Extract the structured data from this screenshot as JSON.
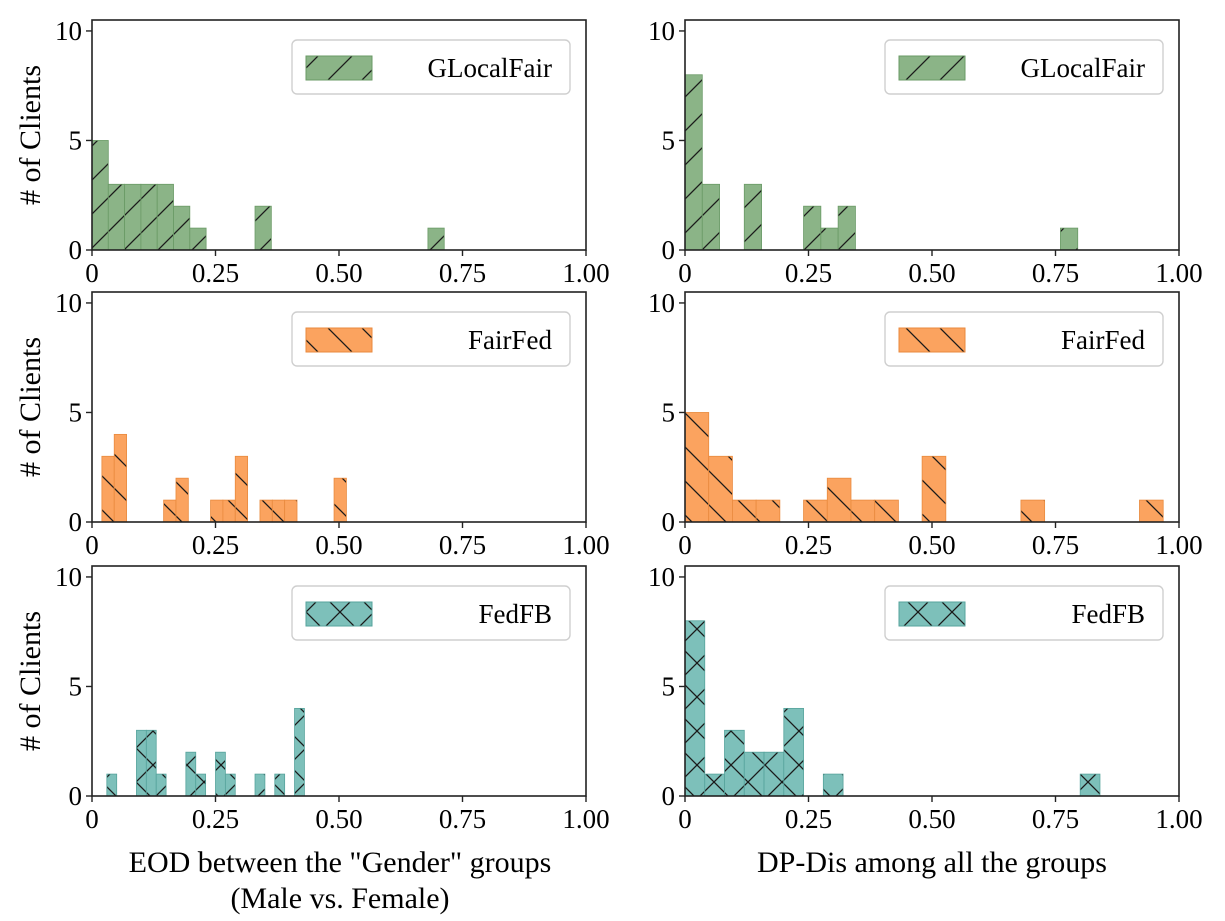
{
  "figure": {
    "left_xlabel_line1": "EOD between the \"Gender\" groups",
    "left_xlabel_line2": "(Male vs. Female)",
    "right_xlabel": "DP-Dis among all the groups",
    "ylabel": "# of Clients"
  },
  "chart_data": [
    {
      "type": "bar",
      "title": "",
      "legend": "GLocalFair",
      "legend_position": "top-right",
      "color": "#8bb487",
      "edge_color": "#6a9a66",
      "hatch": "/",
      "xlabel": "",
      "ylabel": "# of Clients",
      "xlim": [
        0,
        1.0
      ],
      "ylim": [
        0,
        10.5
      ],
      "xticks": [
        "0",
        "0.25",
        "0.50",
        "0.75",
        "1.00"
      ],
      "yticks": [
        "0",
        "5",
        "10"
      ],
      "bin_width": 0.033,
      "x": [
        0.0,
        0.033,
        0.066,
        0.099,
        0.132,
        0.165,
        0.198,
        0.33,
        0.68
      ],
      "values": [
        5,
        3,
        3,
        3,
        3,
        2,
        1,
        2,
        1
      ]
    },
    {
      "type": "bar",
      "title": "",
      "legend": "GLocalFair",
      "legend_position": "top-right",
      "color": "#8bb487",
      "edge_color": "#6a9a66",
      "hatch": "/",
      "xlabel": "",
      "ylabel": "",
      "xlim": [
        0,
        1.0
      ],
      "ylim": [
        0,
        10.5
      ],
      "xticks": [
        "0",
        "0.25",
        "0.50",
        "0.75",
        "1.00"
      ],
      "yticks": [
        "0",
        "5",
        "10"
      ],
      "bin_width": 0.035,
      "x": [
        0.0,
        0.035,
        0.12,
        0.24,
        0.275,
        0.31,
        0.76
      ],
      "values": [
        8,
        3,
        3,
        2,
        1,
        2,
        1
      ]
    },
    {
      "type": "bar",
      "title": "",
      "legend": "FairFed",
      "legend_position": "top-right",
      "color": "#fba35f",
      "edge_color": "#e98a3e",
      "hatch": "\\",
      "xlabel": "",
      "ylabel": "# of Clients",
      "xlim": [
        0,
        1.0
      ],
      "ylim": [
        0,
        10.5
      ],
      "xticks": [
        "0",
        "0.25",
        "0.50",
        "0.75",
        "1.00"
      ],
      "yticks": [
        "0",
        "5",
        "10"
      ],
      "bin_width": 0.025,
      "x": [
        0.02,
        0.045,
        0.145,
        0.17,
        0.24,
        0.265,
        0.29,
        0.34,
        0.365,
        0.39,
        0.49
      ],
      "values": [
        3,
        4,
        1,
        2,
        1,
        1,
        3,
        1,
        1,
        1,
        2
      ]
    },
    {
      "type": "bar",
      "title": "",
      "legend": "FairFed",
      "legend_position": "top-right",
      "color": "#fba35f",
      "edge_color": "#e98a3e",
      "hatch": "\\",
      "xlabel": "",
      "ylabel": "",
      "xlim": [
        0,
        1.0
      ],
      "ylim": [
        0,
        10.5
      ],
      "xticks": [
        "0",
        "0.25",
        "0.50",
        "0.75",
        "1.00"
      ],
      "yticks": [
        "0",
        "5",
        "10"
      ],
      "bin_width": 0.048,
      "x": [
        0.0,
        0.048,
        0.096,
        0.144,
        0.24,
        0.288,
        0.336,
        0.384,
        0.48,
        0.68,
        0.92
      ],
      "values": [
        5,
        3,
        1,
        1,
        1,
        2,
        1,
        1,
        3,
        1,
        1
      ]
    },
    {
      "type": "bar",
      "title": "",
      "legend": "FedFB",
      "legend_position": "top-right",
      "color": "#7dc0ba",
      "edge_color": "#56a39c",
      "hatch": "x",
      "xlabel": "",
      "ylabel": "# of Clients",
      "xlim": [
        0,
        1.0
      ],
      "ylim": [
        0,
        10.5
      ],
      "xticks": [
        "0",
        "0.25",
        "0.50",
        "0.75",
        "1.00"
      ],
      "yticks": [
        "0",
        "5",
        "10"
      ],
      "bin_width": 0.02,
      "x": [
        0.03,
        0.09,
        0.11,
        0.13,
        0.19,
        0.21,
        0.25,
        0.27,
        0.33,
        0.37,
        0.41
      ],
      "values": [
        1,
        3,
        3,
        1,
        2,
        1,
        2,
        1,
        1,
        1,
        4
      ]
    },
    {
      "type": "bar",
      "title": "",
      "legend": "FedFB",
      "legend_position": "top-right",
      "color": "#7dc0ba",
      "edge_color": "#56a39c",
      "hatch": "x",
      "xlabel": "",
      "ylabel": "",
      "xlim": [
        0,
        1.0
      ],
      "ylim": [
        0,
        10.5
      ],
      "xticks": [
        "0",
        "0.25",
        "0.50",
        "0.75",
        "1.00"
      ],
      "yticks": [
        "0",
        "5",
        "10"
      ],
      "bin_width": 0.04,
      "x": [
        0.0,
        0.04,
        0.08,
        0.12,
        0.16,
        0.2,
        0.28,
        0.8
      ],
      "values": [
        8,
        1,
        3,
        2,
        2,
        4,
        1,
        1
      ]
    }
  ]
}
